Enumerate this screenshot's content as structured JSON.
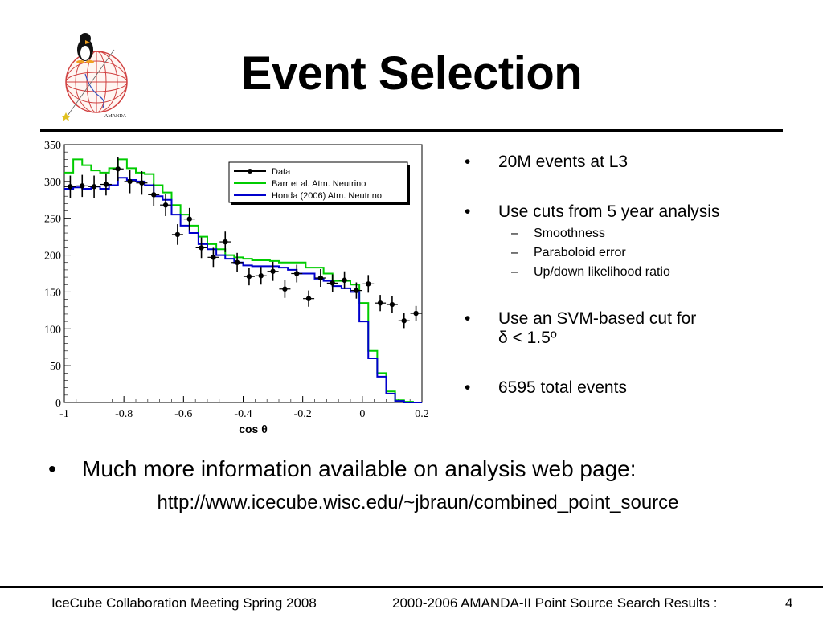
{
  "slide": {
    "title": "Event Selection",
    "logo_text": "AMANDA",
    "bullets": [
      {
        "text": "20M events at L3",
        "subs": []
      },
      {
        "text": "Use cuts from 5 year analysis",
        "subs": [
          "Smoothness",
          "Paraboloid error",
          "Up/down likelihood ratio"
        ]
      },
      {
        "text": "Use an SVM-based cut for",
        "text2": "δ < 1.5º",
        "subs": []
      },
      {
        "text": "6595 total events",
        "subs": []
      }
    ],
    "main_bullet": "Much more information available on analysis web page:",
    "url": "http://www.icecube.wisc.edu/~jbraun/combined_point_source",
    "bullet_char": "•",
    "dash_char": "–"
  },
  "footer": {
    "left": "IceCube Collaboration Meeting Spring 2008",
    "center": "2000-2006 AMANDA-II Point Source Search Results :",
    "page": "4"
  },
  "chart_data": {
    "type": "line",
    "xlabel": "cos θ",
    "ylabel": "",
    "xlim": [
      -1.0,
      0.2
    ],
    "ylim": [
      0,
      350
    ],
    "xticks": [
      "-1",
      "-0.8",
      "-0.6",
      "-0.4",
      "-0.2",
      "0",
      "0.2"
    ],
    "yticks": [
      "0",
      "50",
      "100",
      "150",
      "200",
      "250",
      "300",
      "350"
    ],
    "legend_placement": "top-right",
    "colors": {
      "data": "#000000",
      "barr": "#00cc00",
      "honda": "#0000cc"
    },
    "series": [
      {
        "name": "Data",
        "style": "points",
        "x": [
          -0.98,
          -0.94,
          -0.9,
          -0.86,
          -0.82,
          -0.78,
          -0.74,
          -0.7,
          -0.66,
          -0.62,
          -0.58,
          -0.54,
          -0.5,
          -0.46,
          -0.42,
          -0.38,
          -0.34,
          -0.3,
          -0.26,
          -0.22,
          -0.18,
          -0.14,
          -0.1,
          -0.06,
          -0.02,
          0.02,
          0.06,
          0.1,
          0.14,
          0.18
        ],
        "y": [
          293,
          294,
          293,
          296,
          317,
          300,
          298,
          282,
          268,
          228,
          249,
          210,
          197,
          218,
          190,
          171,
          172,
          178,
          154,
          175,
          141,
          169,
          162,
          166,
          152,
          161,
          135,
          133,
          111,
          121
        ],
        "err": [
          15,
          15,
          15,
          15,
          16,
          16,
          16,
          15,
          15,
          14,
          15,
          14,
          13,
          14,
          13,
          12,
          12,
          13,
          12,
          12,
          11,
          12,
          12,
          12,
          11,
          12,
          11,
          11,
          10,
          10
        ]
      },
      {
        "name": "Barr et al. Atm. Neutrino",
        "style": "step",
        "edges": [
          -1.0,
          -0.97,
          -0.94,
          -0.91,
          -0.88,
          -0.85,
          -0.82,
          -0.79,
          -0.76,
          -0.73,
          -0.7,
          -0.67,
          -0.64,
          -0.61,
          -0.58,
          -0.55,
          -0.52,
          -0.49,
          -0.46,
          -0.43,
          -0.4,
          -0.37,
          -0.34,
          -0.31,
          -0.28,
          -0.25,
          -0.22,
          -0.19,
          -0.16,
          -0.13,
          -0.1,
          -0.07,
          -0.04,
          -0.01,
          0.02,
          0.05,
          0.08,
          0.11,
          0.14,
          0.17,
          0.2
        ],
        "y": [
          312,
          330,
          322,
          315,
          312,
          318,
          330,
          318,
          312,
          310,
          295,
          285,
          268,
          255,
          240,
          225,
          215,
          208,
          200,
          197,
          195,
          193,
          193,
          192,
          190,
          190,
          190,
          183,
          183,
          175,
          165,
          165,
          160,
          135,
          70,
          40,
          15,
          3,
          1,
          0
        ]
      },
      {
        "name": "Honda (2006) Atm. Neutrino",
        "style": "step",
        "edges": [
          -1.0,
          -0.97,
          -0.94,
          -0.91,
          -0.88,
          -0.85,
          -0.82,
          -0.79,
          -0.76,
          -0.73,
          -0.7,
          -0.67,
          -0.64,
          -0.61,
          -0.58,
          -0.55,
          -0.52,
          -0.49,
          -0.46,
          -0.43,
          -0.4,
          -0.37,
          -0.34,
          -0.31,
          -0.28,
          -0.25,
          -0.22,
          -0.19,
          -0.16,
          -0.13,
          -0.1,
          -0.07,
          -0.04,
          -0.01,
          0.02,
          0.05,
          0.08,
          0.11,
          0.14,
          0.17,
          0.2
        ],
        "y": [
          290,
          292,
          290,
          293,
          290,
          295,
          305,
          302,
          300,
          295,
          280,
          275,
          255,
          240,
          230,
          215,
          208,
          200,
          195,
          190,
          186,
          185,
          185,
          185,
          183,
          180,
          175,
          175,
          168,
          165,
          158,
          155,
          150,
          110,
          60,
          35,
          12,
          2,
          0,
          0
        ]
      }
    ]
  }
}
